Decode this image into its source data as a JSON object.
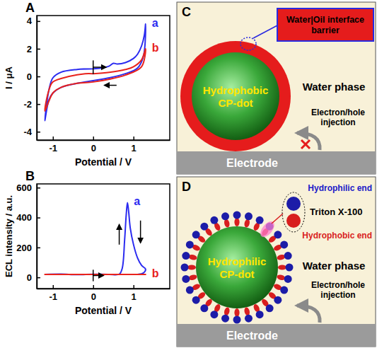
{
  "chart_data": [
    {
      "label": "A",
      "type": "line",
      "xlabel": "Potential / V",
      "ylabel": "I / μA",
      "xlim": [
        -1.4,
        1.9
      ],
      "xticks": [
        -1,
        0,
        1
      ],
      "ylim": [
        -4.6,
        4.4
      ],
      "yticks": [
        -4,
        -2,
        0,
        2,
        4
      ],
      "series": [
        {
          "name": "a",
          "color": "#2b2bf0",
          "x": [
            0,
            0.2,
            0.4,
            0.5,
            0.6,
            0.8,
            1.0,
            1.1,
            1.2,
            1.27,
            1.3,
            1.25,
            1.1,
            0.8,
            0.4,
            0,
            -0.4,
            -0.8,
            -1.0,
            -1.1,
            -1.2,
            -1.1,
            -1.0,
            -0.8,
            -0.4,
            0
          ],
          "values": [
            0.55,
            0.6,
            0.75,
            0.95,
            0.9,
            1.0,
            1.3,
            1.6,
            2.2,
            3.0,
            3.8,
            1.5,
            0.6,
            0.2,
            -0.1,
            -0.3,
            -0.5,
            -0.8,
            -1.2,
            -1.7,
            -3.2,
            -1.0,
            -0.1,
            0.3,
            0.5,
            0.55
          ]
        },
        {
          "name": "b",
          "color": "#e8221c",
          "x": [
            0,
            0.4,
            0.8,
            1.0,
            1.2,
            1.3,
            1.2,
            0.8,
            0.4,
            0,
            -0.4,
            -0.8,
            -1.0,
            -1.2,
            -1.1,
            -1.0,
            -0.6,
            -0.2,
            0
          ],
          "values": [
            0.2,
            0.3,
            0.5,
            0.7,
            1.2,
            2.0,
            0.7,
            0.1,
            -0.2,
            -0.4,
            -0.5,
            -0.8,
            -1.2,
            -2.5,
            -1.0,
            -0.4,
            0.0,
            0.2,
            0.2
          ]
        }
      ]
    },
    {
      "label": "B",
      "type": "line",
      "xlabel": "Potential / V",
      "ylabel": "ECL intensity / a.u.",
      "xlim": [
        -1.4,
        1.9
      ],
      "xticks": [
        -1,
        0,
        1
      ],
      "ylim": [
        -75,
        625
      ],
      "yticks": [
        0,
        200,
        400,
        600
      ],
      "series": [
        {
          "name": "a",
          "color": "#2b2bf0",
          "x": [
            -1.2,
            -0.8,
            -0.4,
            0,
            0.4,
            0.65,
            0.72,
            0.78,
            0.82,
            0.85,
            0.88,
            0.92,
            1.0,
            1.1,
            1.2,
            1.3,
            1.25,
            1.1
          ],
          "values": [
            20,
            22,
            18,
            21,
            20,
            22,
            60,
            250,
            420,
            500,
            440,
            330,
            220,
            130,
            80,
            55,
            30,
            20
          ]
        },
        {
          "name": "b",
          "color": "#e8221c",
          "x": [
            0,
            0.6,
            1.3,
            0.6,
            0,
            -0.6,
            -1.2,
            -0.6,
            0
          ],
          "values": [
            20,
            20,
            20,
            20,
            20,
            20,
            20,
            20,
            20
          ]
        }
      ]
    }
  ],
  "diagrams": [
    {
      "label": "C",
      "callout": "Water|Oil interface barrier",
      "particle": "Hydrophobic CP-dot",
      "medium": "Water phase",
      "transfer": "Electron/hole injection",
      "electrode": "Electrode"
    },
    {
      "label": "D",
      "callout": {
        "top": "Hydrophilic end",
        "name": "Triton X-100",
        "bottom": "Hydrophobic end"
      },
      "particle": "Hydrophilic CP-dot",
      "medium": "Water phase",
      "transfer": "Electron/hole injection",
      "electrode": "Electrode"
    }
  ]
}
